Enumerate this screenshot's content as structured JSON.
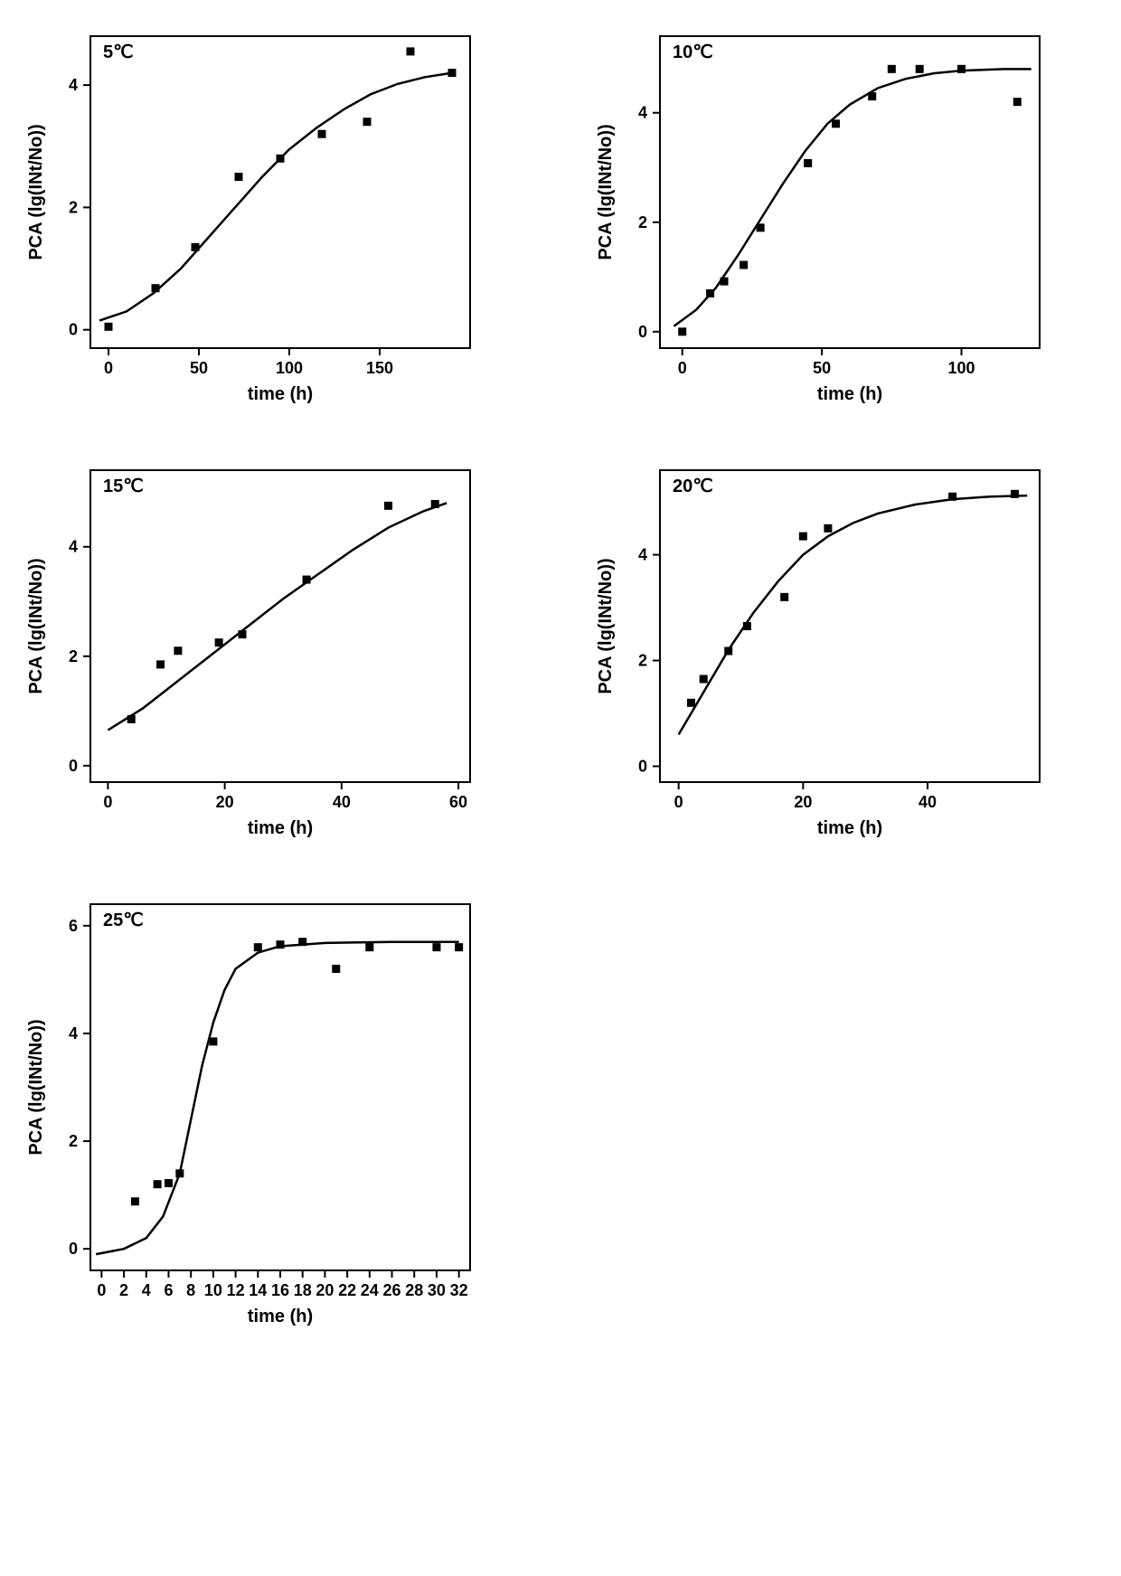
{
  "global": {
    "background_color": "#ffffff",
    "series_color": "#000000",
    "axis_color": "#000000",
    "marker_shape": "square",
    "marker_size": 9,
    "line_width": 2.5,
    "font_family": "Arial",
    "xlabel": "time (h)",
    "ylabel": "PCA (lg(INt/No))"
  },
  "panels": [
    {
      "id": "p5",
      "label": "5℃",
      "xlim": [
        -10,
        200
      ],
      "ylim": [
        -0.3,
        4.8
      ],
      "xticks": [
        0,
        50,
        100,
        150
      ],
      "yticks": [
        0,
        2,
        4
      ],
      "points": [
        [
          0,
          0.05
        ],
        [
          26,
          0.68
        ],
        [
          48,
          1.35
        ],
        [
          72,
          2.5
        ],
        [
          95,
          2.8
        ],
        [
          118,
          3.2
        ],
        [
          143,
          3.4
        ],
        [
          167,
          4.55
        ],
        [
          190,
          4.2
        ]
      ],
      "curve": [
        [
          -5,
          0.15
        ],
        [
          10,
          0.3
        ],
        [
          25,
          0.6
        ],
        [
          40,
          1.0
        ],
        [
          55,
          1.5
        ],
        [
          70,
          2.0
        ],
        [
          85,
          2.5
        ],
        [
          100,
          2.95
        ],
        [
          115,
          3.3
        ],
        [
          130,
          3.6
        ],
        [
          145,
          3.85
        ],
        [
          160,
          4.02
        ],
        [
          175,
          4.13
        ],
        [
          190,
          4.2
        ]
      ]
    },
    {
      "id": "p10",
      "label": "10℃",
      "xlim": [
        -8,
        128
      ],
      "ylim": [
        -0.3,
        5.4
      ],
      "xticks": [
        0,
        50,
        100
      ],
      "yticks": [
        0,
        2,
        4
      ],
      "points": [
        [
          0,
          0.0
        ],
        [
          10,
          0.7
        ],
        [
          15,
          0.92
        ],
        [
          22,
          1.22
        ],
        [
          28,
          1.9
        ],
        [
          45,
          3.08
        ],
        [
          55,
          3.8
        ],
        [
          68,
          4.3
        ],
        [
          75,
          4.8
        ],
        [
          85,
          4.8
        ],
        [
          100,
          4.8
        ],
        [
          120,
          4.2
        ]
      ],
      "curve": [
        [
          -3,
          0.1
        ],
        [
          5,
          0.4
        ],
        [
          12,
          0.8
        ],
        [
          20,
          1.4
        ],
        [
          28,
          2.05
        ],
        [
          36,
          2.7
        ],
        [
          44,
          3.3
        ],
        [
          52,
          3.8
        ],
        [
          60,
          4.15
        ],
        [
          70,
          4.45
        ],
        [
          80,
          4.62
        ],
        [
          90,
          4.72
        ],
        [
          100,
          4.77
        ],
        [
          115,
          4.8
        ],
        [
          125,
          4.8
        ]
      ]
    },
    {
      "id": "p15",
      "label": "15℃",
      "xlim": [
        -3,
        62
      ],
      "ylim": [
        -0.3,
        5.4
      ],
      "xticks": [
        0,
        20,
        40,
        60
      ],
      "yticks": [
        0,
        2,
        4
      ],
      "points": [
        [
          4,
          0.85
        ],
        [
          9,
          1.85
        ],
        [
          12,
          2.1
        ],
        [
          19,
          2.25
        ],
        [
          23,
          2.4
        ],
        [
          34,
          3.4
        ],
        [
          48,
          4.75
        ],
        [
          56,
          4.78
        ]
      ],
      "curve": [
        [
          0,
          0.65
        ],
        [
          6,
          1.05
        ],
        [
          12,
          1.55
        ],
        [
          18,
          2.05
        ],
        [
          24,
          2.55
        ],
        [
          30,
          3.05
        ],
        [
          36,
          3.5
        ],
        [
          42,
          3.95
        ],
        [
          48,
          4.35
        ],
        [
          54,
          4.65
        ],
        [
          58,
          4.8
        ]
      ]
    },
    {
      "id": "p20",
      "label": "20℃",
      "xlim": [
        -3,
        58
      ],
      "ylim": [
        -0.3,
        5.6
      ],
      "xticks": [
        0,
        20,
        40
      ],
      "yticks": [
        0,
        2,
        4
      ],
      "points": [
        [
          2,
          1.2
        ],
        [
          4,
          1.65
        ],
        [
          8,
          2.18
        ],
        [
          11,
          2.65
        ],
        [
          17,
          3.2
        ],
        [
          20,
          4.35
        ],
        [
          24,
          4.5
        ],
        [
          44,
          5.1
        ],
        [
          54,
          5.15
        ]
      ],
      "curve": [
        [
          0,
          0.6
        ],
        [
          4,
          1.4
        ],
        [
          8,
          2.2
        ],
        [
          12,
          2.9
        ],
        [
          16,
          3.5
        ],
        [
          20,
          4.0
        ],
        [
          24,
          4.35
        ],
        [
          28,
          4.6
        ],
        [
          32,
          4.78
        ],
        [
          38,
          4.95
        ],
        [
          44,
          5.05
        ],
        [
          50,
          5.1
        ],
        [
          56,
          5.12
        ]
      ]
    },
    {
      "id": "p25",
      "label": "25℃",
      "xlim": [
        -1,
        33
      ],
      "ylim": [
        -0.4,
        6.4
      ],
      "xticks": [
        0,
        2,
        4,
        6,
        8,
        10,
        12,
        14,
        16,
        18,
        20,
        22,
        24,
        26,
        28,
        30,
        32
      ],
      "yticks": [
        0,
        2,
        4,
        6
      ],
      "points": [
        [
          3,
          0.88
        ],
        [
          5,
          1.2
        ],
        [
          6,
          1.22
        ],
        [
          7,
          1.4
        ],
        [
          10,
          3.85
        ],
        [
          14,
          5.6
        ],
        [
          16,
          5.65
        ],
        [
          18,
          5.7
        ],
        [
          21,
          5.2
        ],
        [
          24,
          5.6
        ],
        [
          30,
          5.6
        ],
        [
          32,
          5.6
        ]
      ],
      "curve": [
        [
          -0.5,
          -0.1
        ],
        [
          2,
          0.0
        ],
        [
          4,
          0.2
        ],
        [
          5.5,
          0.6
        ],
        [
          7,
          1.4
        ],
        [
          8,
          2.4
        ],
        [
          9,
          3.4
        ],
        [
          10,
          4.2
        ],
        [
          11,
          4.8
        ],
        [
          12,
          5.2
        ],
        [
          14,
          5.5
        ],
        [
          16,
          5.62
        ],
        [
          20,
          5.68
        ],
        [
          26,
          5.7
        ],
        [
          32,
          5.7
        ]
      ]
    }
  ]
}
